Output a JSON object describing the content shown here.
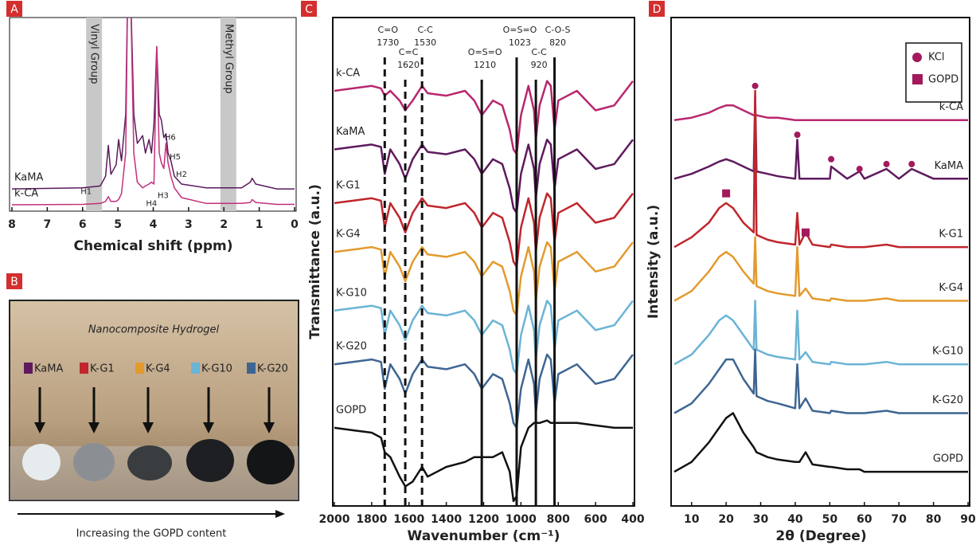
{
  "chart_data": [
    {
      "type": "line",
      "label": "A",
      "xlabel": "Chemical shift (ppm)",
      "x": [
        8,
        6,
        5.5,
        5.35,
        5.27,
        5.2,
        5.05,
        4.98,
        4.9,
        4.78,
        4.72,
        4.65,
        4.55,
        4.45,
        4.3,
        4.22,
        4.12,
        4.05,
        3.98,
        3.9,
        3.83,
        3.77,
        3.7,
        3.64,
        3.58,
        3.5,
        3.4,
        3.2,
        2.5,
        1.5,
        1.25,
        1.2,
        1.1,
        0.5,
        0
      ],
      "xlim": [
        8,
        0
      ],
      "xticks": [
        8,
        7,
        6,
        5,
        4,
        3,
        2,
        1,
        0
      ],
      "ylim": [
        0,
        10
      ],
      "series": [
        {
          "name": "KaMA",
          "color": "#5a1a5c",
          "values": [
            1.15,
            1.2,
            1.3,
            1.8,
            3.4,
            1.9,
            2.4,
            3.7,
            2.6,
            5,
            12,
            12,
            5,
            3.5,
            3.9,
            3.0,
            3.7,
            3.0,
            4.5,
            8.5,
            5,
            4.7,
            3.8,
            4.0,
            3.0,
            2.6,
            1.8,
            1.4,
            1.2,
            1.2,
            1.5,
            1.7,
            1.4,
            1.15,
            1.15
          ]
        },
        {
          "name": "k-CA",
          "color": "#c2307a",
          "values": [
            0.33,
            0.35,
            0.4,
            0.5,
            0.75,
            0.5,
            0.5,
            0.6,
            0.9,
            3,
            12,
            12,
            3,
            1.5,
            1.2,
            1.3,
            1.4,
            1.5,
            1.4,
            8.5,
            3,
            2.5,
            2.2,
            3.5,
            2.5,
            1.8,
            1.2,
            0.7,
            0.4,
            0.4,
            0.45,
            0.6,
            0.45,
            0.35,
            0.35
          ]
        }
      ],
      "bands": [
        {
          "label": "Vinyl Group",
          "x0": 5.9,
          "x1": 5.45
        },
        {
          "label": "Methyl Group",
          "x0": 2.1,
          "x1": 1.65
        }
      ],
      "annotations": [
        {
          "text": "H1",
          "x": 5.9,
          "y": 1.0
        },
        {
          "text": "H4",
          "x": 4.05,
          "y": 0.4
        },
        {
          "text": "H3",
          "x": 3.72,
          "y": 0.8
        },
        {
          "text": "H2",
          "x": 3.2,
          "y": 1.9
        },
        {
          "text": "H5",
          "x": 3.38,
          "y": 2.8
        },
        {
          "text": "H6",
          "x": 3.52,
          "y": 3.8
        }
      ]
    },
    {
      "type": "line",
      "label": "C",
      "xlabel": "Wavenumber (cm⁻¹)",
      "ylabel": "Transmittance (a.u.)",
      "x": [
        2000,
        1900,
        1800,
        1750,
        1730,
        1700,
        1650,
        1620,
        1580,
        1530,
        1500,
        1400,
        1300,
        1250,
        1210,
        1150,
        1100,
        1060,
        1040,
        1023,
        1000,
        960,
        930,
        920,
        900,
        860,
        840,
        820,
        800,
        700,
        600,
        500,
        400
      ],
      "xlim": [
        2000,
        400
      ],
      "xticks": [
        2000,
        1800,
        1600,
        1400,
        1200,
        1000,
        800,
        600,
        400
      ],
      "ylim": [
        0,
        10
      ],
      "series": [
        {
          "name": "k-CA",
          "color": "#b8276f",
          "values": [
            8.5,
            8.55,
            8.6,
            8.55,
            8.4,
            8.5,
            8.3,
            8.1,
            8.3,
            8.6,
            8.45,
            8.4,
            8.5,
            8.3,
            8.0,
            8.3,
            8.2,
            7.7,
            7.3,
            7.2,
            8.0,
            8.6,
            8.1,
            7.5,
            8.2,
            8.7,
            8.6,
            7.7,
            8.3,
            8.5,
            8.1,
            8.2,
            8.7
          ]
        },
        {
          "name": "KaMA",
          "color": "#5f1a5e",
          "values": [
            7.3,
            7.35,
            7.4,
            7.35,
            6.8,
            7.3,
            7.0,
            6.7,
            7.1,
            7.4,
            7.25,
            7.2,
            7.3,
            7.1,
            6.8,
            7.1,
            7.0,
            6.5,
            6.1,
            6.0,
            6.8,
            7.4,
            6.9,
            6.3,
            7.0,
            7.5,
            7.4,
            6.5,
            7.1,
            7.3,
            6.9,
            7.0,
            7.5
          ]
        },
        {
          "name": "K-G1",
          "color": "#c0262d",
          "values": [
            6.2,
            6.25,
            6.3,
            6.25,
            5.7,
            6.2,
            5.9,
            5.6,
            6.0,
            6.3,
            6.15,
            6.1,
            6.2,
            6.0,
            5.7,
            6.0,
            5.9,
            5.4,
            5.0,
            4.9,
            5.7,
            6.3,
            5.8,
            5.2,
            5.9,
            6.4,
            6.3,
            5.4,
            6.0,
            6.2,
            5.8,
            5.9,
            6.4
          ]
        },
        {
          "name": "K-G4",
          "color": "#e39a2d",
          "values": [
            5.2,
            5.25,
            5.3,
            5.25,
            4.7,
            5.2,
            4.9,
            4.6,
            5.0,
            5.3,
            5.15,
            5.1,
            5.2,
            5.0,
            4.7,
            5.0,
            4.9,
            4.4,
            4.0,
            3.9,
            4.7,
            5.3,
            4.8,
            4.2,
            4.9,
            5.4,
            5.3,
            4.4,
            5.0,
            5.2,
            4.8,
            4.9,
            5.4
          ]
        },
        {
          "name": "K-G10",
          "color": "#6ab4d6",
          "values": [
            4.0,
            4.05,
            4.1,
            4.05,
            3.5,
            4.0,
            3.7,
            3.4,
            3.8,
            4.1,
            3.95,
            3.9,
            4.0,
            3.8,
            3.5,
            3.8,
            3.7,
            3.2,
            2.8,
            2.7,
            3.5,
            4.1,
            3.6,
            3.0,
            3.7,
            4.2,
            4.1,
            3.2,
            3.8,
            4.0,
            3.6,
            3.7,
            4.2
          ]
        },
        {
          "name": "K-G20",
          "color": "#3e6592",
          "values": [
            2.9,
            2.95,
            3.0,
            2.95,
            2.4,
            2.9,
            2.6,
            2.3,
            2.7,
            3.0,
            2.85,
            2.8,
            2.9,
            2.7,
            2.4,
            2.7,
            2.6,
            2.1,
            1.7,
            1.6,
            2.4,
            3.0,
            2.5,
            1.9,
            2.6,
            3.1,
            3.0,
            2.1,
            2.7,
            2.9,
            2.5,
            2.6,
            3.1
          ]
        },
        {
          "name": "GOPD",
          "color": "#111111",
          "values": [
            1.6,
            1.55,
            1.5,
            1.4,
            1.1,
            1.0,
            0.6,
            0.4,
            0.5,
            0.8,
            0.6,
            0.8,
            0.9,
            1.0,
            1.0,
            1.0,
            1.1,
            0.7,
            0.1,
            0.2,
            1.2,
            1.6,
            1.7,
            1.7,
            1.7,
            1.75,
            1.7,
            1.7,
            1.7,
            1.7,
            1.65,
            1.6,
            1.6
          ]
        }
      ],
      "ref_lines": [
        {
          "x": 1730,
          "label": "C=O",
          "style": "dashed"
        },
        {
          "x": 1620,
          "label": "C=C",
          "style": "dashed"
        },
        {
          "x": 1530,
          "label": "C-C",
          "style": "dashed"
        },
        {
          "x": 1210,
          "label": "O=S=O",
          "style": "solid"
        },
        {
          "x": 1023,
          "label": "O=S=O",
          "style": "solid"
        },
        {
          "x": 920,
          "label": "C-C",
          "style": "solid"
        },
        {
          "x": 820,
          "label": "C-O-S",
          "style": "solid"
        }
      ]
    },
    {
      "type": "line",
      "label": "D",
      "xlabel": "2θ (Degree)",
      "ylabel": "Intensity (a.u.)",
      "x": [
        5,
        10,
        15,
        18,
        20,
        22,
        25,
        28,
        28.4,
        28.8,
        32,
        35,
        40,
        40.6,
        41.2,
        43,
        45,
        50,
        50.4,
        55,
        58.6,
        60,
        66.4,
        70,
        73.7,
        80,
        90
      ],
      "xlim": [
        5,
        90
      ],
      "xticks": [
        10,
        20,
        30,
        40,
        50,
        60,
        70,
        80,
        90
      ],
      "ylim": [
        0,
        10
      ],
      "legend": "upper right",
      "series": [
        {
          "name": "k-CA",
          "color": "#b8276f",
          "values": [
            7.9,
            7.95,
            8.05,
            8.15,
            8.2,
            8.2,
            8.1,
            8.0,
            8.0,
            8.0,
            7.95,
            7.95,
            7.9,
            7.9,
            7.9,
            7.9,
            7.9,
            7.9,
            7.9,
            7.9,
            7.9,
            7.9,
            7.9,
            7.9,
            7.9,
            7.9,
            7.9
          ]
        },
        {
          "name": "KaMA",
          "color": "#5f1a5e",
          "values": [
            6.7,
            6.8,
            6.95,
            7.05,
            7.1,
            7.05,
            6.95,
            6.85,
            8.4,
            6.85,
            6.8,
            6.75,
            6.7,
            7.5,
            6.7,
            6.7,
            6.7,
            6.7,
            6.95,
            6.7,
            6.85,
            6.7,
            6.9,
            6.7,
            6.9,
            6.7,
            6.7
          ]
        },
        {
          "name": "K-G1",
          "color": "#c0262d",
          "values": [
            5.3,
            5.5,
            5.8,
            6.1,
            6.2,
            6.1,
            5.8,
            5.6,
            8.5,
            5.55,
            5.45,
            5.4,
            5.35,
            6.0,
            5.35,
            5.6,
            5.35,
            5.3,
            5.35,
            5.3,
            5.3,
            5.3,
            5.35,
            5.3,
            5.3,
            5.3,
            5.3
          ]
        },
        {
          "name": "K-G4",
          "color": "#e39a2d",
          "values": [
            4.2,
            4.4,
            4.8,
            5.1,
            5.2,
            5.1,
            4.8,
            4.55,
            5.5,
            4.5,
            4.4,
            4.35,
            4.3,
            5.3,
            4.3,
            4.45,
            4.25,
            4.2,
            4.25,
            4.2,
            4.2,
            4.2,
            4.25,
            4.2,
            4.2,
            4.2,
            4.2
          ]
        },
        {
          "name": "K-G10",
          "color": "#6ab4d6",
          "values": [
            2.9,
            3.1,
            3.5,
            3.8,
            3.9,
            3.8,
            3.5,
            3.2,
            4.2,
            3.2,
            3.1,
            3.05,
            3.0,
            4.0,
            3.0,
            3.15,
            2.95,
            2.9,
            2.95,
            2.9,
            2.9,
            2.9,
            2.95,
            2.9,
            2.9,
            2.9,
            2.9
          ]
        },
        {
          "name": "K-G20",
          "color": "#3e6592",
          "values": [
            1.9,
            2.1,
            2.5,
            2.8,
            3.0,
            3.0,
            2.6,
            2.3,
            3.2,
            2.25,
            2.15,
            2.1,
            2.0,
            2.9,
            2.0,
            2.2,
            1.95,
            1.9,
            1.95,
            1.9,
            1.9,
            1.9,
            1.95,
            1.9,
            1.9,
            1.9,
            1.9
          ]
        },
        {
          "name": "GOPD",
          "color": "#111111",
          "values": [
            0.7,
            0.9,
            1.3,
            1.6,
            1.8,
            1.9,
            1.5,
            1.2,
            1.15,
            1.1,
            1.0,
            0.95,
            0.9,
            0.9,
            0.9,
            1.1,
            0.85,
            0.8,
            0.8,
            0.75,
            0.75,
            0.7,
            0.7,
            0.7,
            0.7,
            0.7,
            0.7
          ]
        }
      ],
      "markers": [
        {
          "name": "KCl",
          "shape": "circle",
          "color": "#a3195b",
          "points": [
            {
              "x": 28.4,
              "y": 8.6
            },
            {
              "x": 40.6,
              "y": 7.6
            },
            {
              "x": 50.4,
              "y": 7.1
            },
            {
              "x": 58.6,
              "y": 6.9
            },
            {
              "x": 66.4,
              "y": 7.0
            },
            {
              "x": 73.7,
              "y": 7.0
            }
          ]
        },
        {
          "name": "GOPD",
          "shape": "square",
          "color": "#a3195b",
          "points": [
            {
              "x": 20,
              "y": 6.4
            },
            {
              "x": 43,
              "y": 5.6
            }
          ]
        }
      ]
    }
  ],
  "panel_b": {
    "label": "B",
    "title": "Nanocomposite Hydrogel",
    "samples": [
      {
        "label": "KaMA",
        "color": "#5f1a5e"
      },
      {
        "label": "K-G1",
        "color": "#c0262d"
      },
      {
        "label": "K-G4",
        "color": "#e39a2d"
      },
      {
        "label": "K-G10",
        "color": "#6ab4d6"
      },
      {
        "label": "K-G20",
        "color": "#3e6592"
      }
    ],
    "caption": "Increasing the GOPD content"
  }
}
